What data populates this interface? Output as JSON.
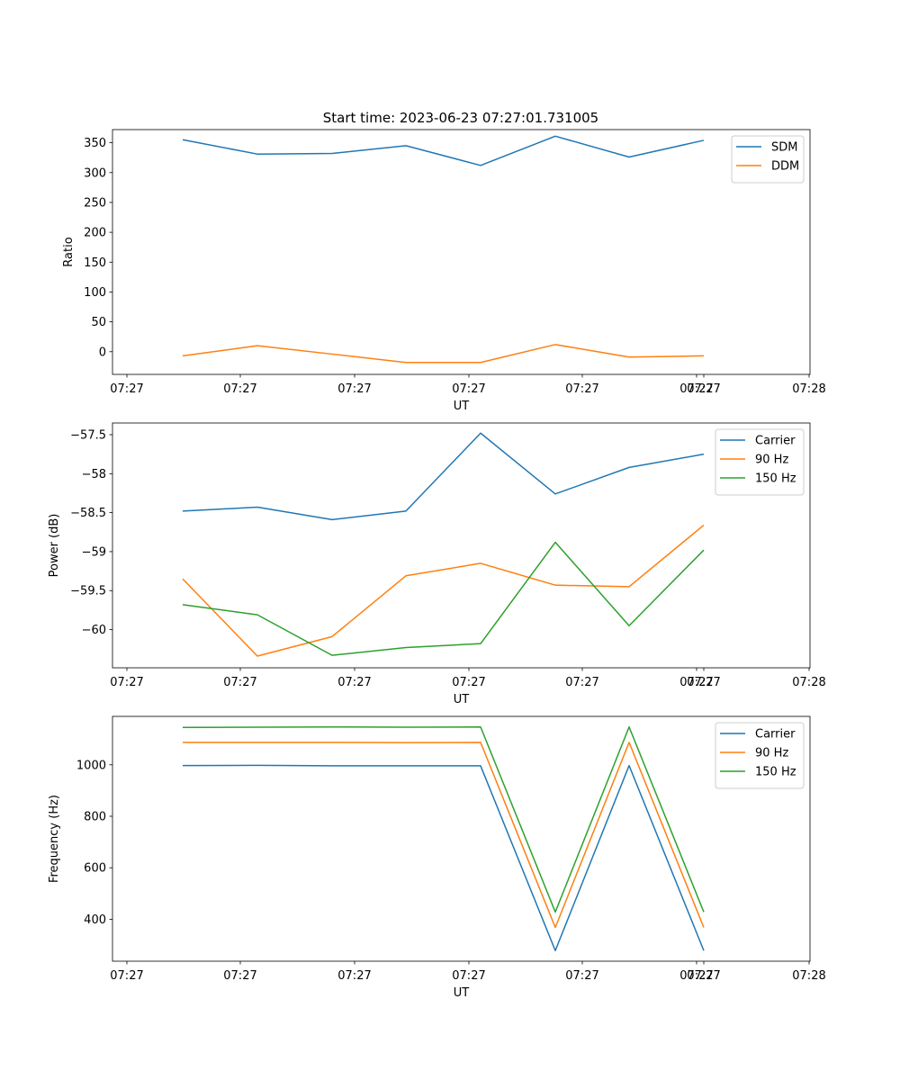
{
  "figure_title": "Start time: 2023-06-23 07:27:01.731005",
  "chart_data": [
    {
      "type": "line",
      "title": "Start time: 2023-06-23 07:27:01.731005",
      "xlabel": "UT",
      "ylabel": "Ratio",
      "x_tick_labels": [
        "07:27",
        "07:27",
        "07:27",
        "07:27",
        "07:27",
        "07:27",
        "07:27"
      ],
      "x_tick_end_label": "07:28",
      "ylim": [
        -38,
        372
      ],
      "yticks": [
        0,
        50,
        100,
        150,
        200,
        250,
        300,
        350
      ],
      "legend": "top-right",
      "grid": false,
      "series": [
        {
          "name": "SDM",
          "color": "#1f77b4",
          "values": [
            355,
            331,
            332,
            345,
            312,
            361,
            326,
            354
          ]
        },
        {
          "name": "DDM",
          "color": "#ff7f0e",
          "values": [
            -7,
            10,
            -4,
            -18,
            -18,
            12,
            -9,
            -7
          ]
        }
      ]
    },
    {
      "type": "line",
      "xlabel": "UT",
      "ylabel": "Power (dB)",
      "x_tick_labels": [
        "07:27",
        "07:27",
        "07:27",
        "07:27",
        "07:27",
        "07:27",
        "07:27"
      ],
      "x_tick_end_label": "07:28",
      "ylim": [
        -60.49,
        -57.35
      ],
      "yticks": [
        -60.0,
        -59.5,
        -59.0,
        -58.5,
        -58.0,
        -57.5
      ],
      "legend": "top-right",
      "grid": false,
      "series": [
        {
          "name": "Carrier",
          "color": "#1f77b4",
          "values": [
            -58.48,
            -58.43,
            -58.59,
            -58.48,
            -57.48,
            -58.26,
            -57.92,
            -57.75
          ]
        },
        {
          "name": "90 Hz",
          "color": "#ff7f0e",
          "values": [
            -59.35,
            -60.34,
            -60.09,
            -59.31,
            -59.15,
            -59.43,
            -59.45,
            -58.66
          ]
        },
        {
          "name": "150 Hz",
          "color": "#2ca02c",
          "values": [
            -59.68,
            -59.81,
            -60.33,
            -60.23,
            -60.18,
            -58.88,
            -59.95,
            -58.98
          ]
        }
      ]
    },
    {
      "type": "line",
      "xlabel": "UT",
      "ylabel": "Frequency (Hz)",
      "x_tick_labels": [
        "07:27",
        "07:27",
        "07:27",
        "07:27",
        "07:27",
        "07:27",
        "07:27"
      ],
      "x_tick_end_label": "07:28",
      "ylim": [
        237,
        1188
      ],
      "yticks": [
        400,
        600,
        800,
        1000
      ],
      "legend": "top-right",
      "grid": false,
      "series": [
        {
          "name": "Carrier",
          "color": "#1f77b4",
          "values": [
            997,
            998,
            996,
            996,
            996,
            278,
            997,
            278
          ]
        },
        {
          "name": "90 Hz",
          "color": "#ff7f0e",
          "values": [
            1087,
            1087,
            1087,
            1086,
            1087,
            368,
            1087,
            368
          ]
        },
        {
          "name": "150 Hz",
          "color": "#2ca02c",
          "values": [
            1145,
            1146,
            1147,
            1146,
            1147,
            428,
            1147,
            428
          ]
        }
      ]
    }
  ]
}
